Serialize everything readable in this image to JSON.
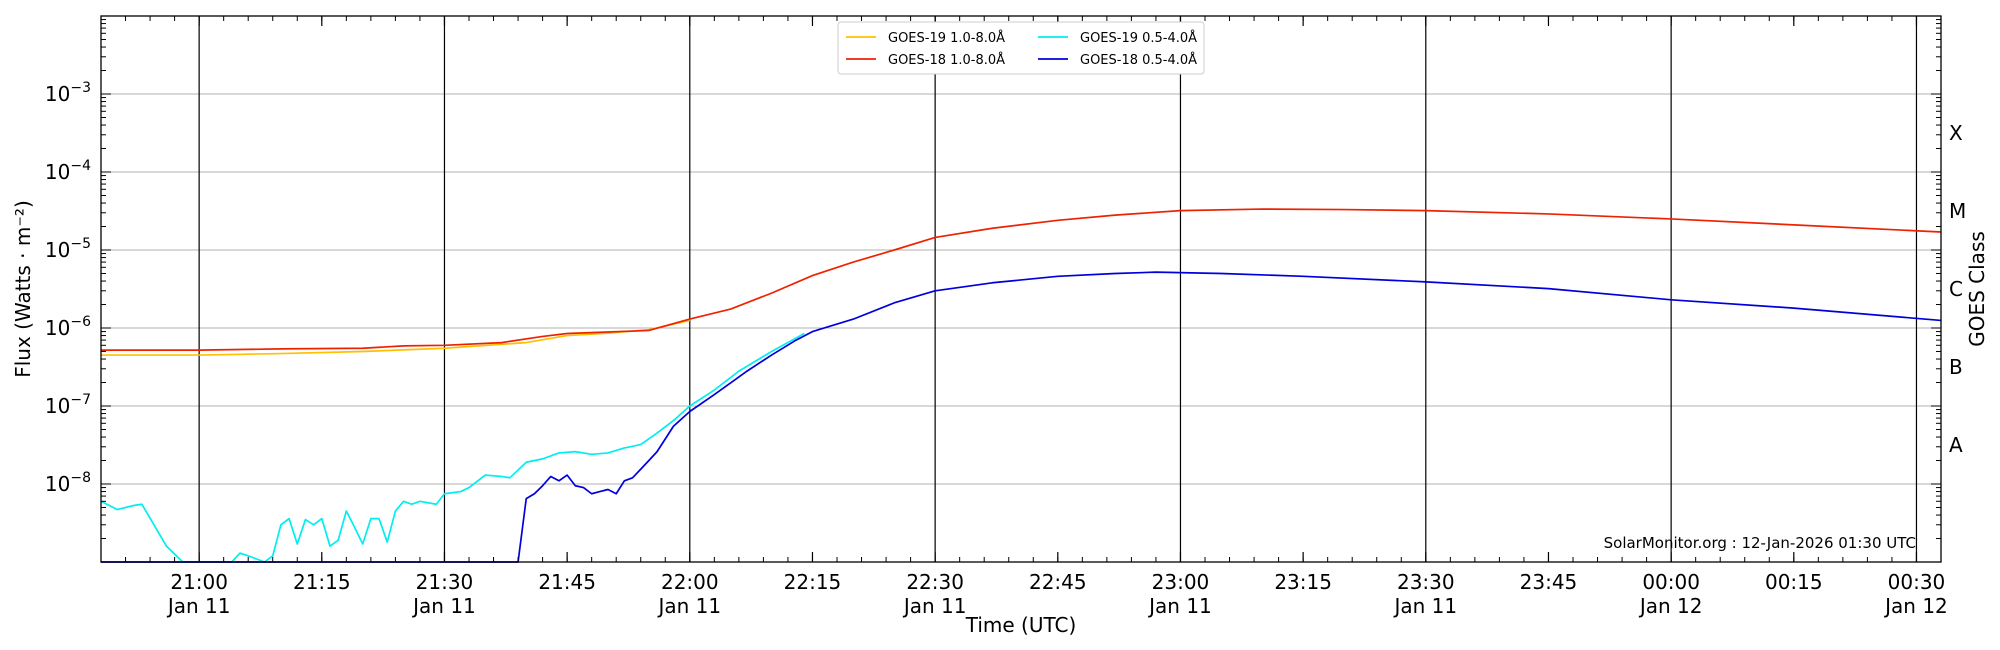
{
  "chart_data": {
    "type": "line",
    "xlabel": "Time (UTC)",
    "ylabel": "Flux (Watts · m⁻²)",
    "ylabel_right": "GOES Class",
    "yscale": "log",
    "xlim": [
      "2026-01-11 20:48",
      "2026-01-12 00:33"
    ],
    "ylim": [
      1e-09,
      0.01
    ],
    "grid": "horizontal at decades, vertical at 30-minute marks",
    "legend_position": "top-center",
    "watermark": "SolarMonitor.org : 12-Jan-2026 01:30 UTC",
    "x_ticks": [
      {
        "time": "2026-01-11 21:00",
        "label": "21:00",
        "sub": "Jan 11"
      },
      {
        "time": "2026-01-11 21:15",
        "label": "21:15",
        "sub": ""
      },
      {
        "time": "2026-01-11 21:30",
        "label": "21:30",
        "sub": "Jan 11"
      },
      {
        "time": "2026-01-11 21:45",
        "label": "21:45",
        "sub": ""
      },
      {
        "time": "2026-01-11 22:00",
        "label": "22:00",
        "sub": "Jan 11"
      },
      {
        "time": "2026-01-11 22:15",
        "label": "22:15",
        "sub": ""
      },
      {
        "time": "2026-01-11 22:30",
        "label": "22:30",
        "sub": "Jan 11"
      },
      {
        "time": "2026-01-11 22:45",
        "label": "22:45",
        "sub": ""
      },
      {
        "time": "2026-01-11 23:00",
        "label": "23:00",
        "sub": "Jan 11"
      },
      {
        "time": "2026-01-11 23:15",
        "label": "23:15",
        "sub": ""
      },
      {
        "time": "2026-01-11 23:30",
        "label": "23:30",
        "sub": "Jan 11"
      },
      {
        "time": "2026-01-11 23:45",
        "label": "23:45",
        "sub": ""
      },
      {
        "time": "2026-01-12 00:00",
        "label": "00:00",
        "sub": "Jan 12"
      },
      {
        "time": "2026-01-12 00:15",
        "label": "00:15",
        "sub": ""
      },
      {
        "time": "2026-01-12 00:30",
        "label": "00:30",
        "sub": "Jan 12"
      }
    ],
    "y_ticks": [
      {
        "value": 1e-08,
        "mant": "10",
        "exp": "−8"
      },
      {
        "value": 1e-07,
        "mant": "10",
        "exp": "−7"
      },
      {
        "value": 1e-06,
        "mant": "10",
        "exp": "−6"
      },
      {
        "value": 1e-05,
        "mant": "10",
        "exp": "−5"
      },
      {
        "value": 0.0001,
        "mant": "10",
        "exp": "−4"
      },
      {
        "value": 0.001,
        "mant": "10",
        "exp": "−3"
      }
    ],
    "class_labels": [
      {
        "label": "A",
        "value": 1e-08
      },
      {
        "label": "B",
        "value": 1e-07
      },
      {
        "label": "C",
        "value": 1e-06
      },
      {
        "label": "M",
        "value": 1e-05
      },
      {
        "label": "X",
        "value": 0.0001
      }
    ],
    "series": [
      {
        "name": "GOES-19 1.0-8.0Å",
        "color": "#ffc000",
        "points": [
          [
            "2026-01-11 20:48",
            4.5e-07
          ],
          [
            "2026-01-11 21:00",
            4.5e-07
          ],
          [
            "2026-01-11 21:10",
            4.7e-07
          ],
          [
            "2026-01-11 21:20",
            5e-07
          ],
          [
            "2026-01-11 21:30",
            5.5e-07
          ],
          [
            "2026-01-11 21:40",
            6.5e-07
          ],
          [
            "2026-01-11 21:45",
            8e-07
          ],
          [
            "2026-01-11 21:50",
            8.6e-07
          ],
          [
            "2026-01-11 21:55",
            9.5e-07
          ],
          [
            "2026-01-11 22:00",
            1.25e-06
          ]
        ]
      },
      {
        "name": "GOES-18 1.0-8.0Å",
        "color": "#ee2200",
        "points": [
          [
            "2026-01-11 20:48",
            5.2e-07
          ],
          [
            "2026-01-11 21:00",
            5.2e-07
          ],
          [
            "2026-01-11 21:10",
            5.4e-07
          ],
          [
            "2026-01-11 21:20",
            5.5e-07
          ],
          [
            "2026-01-11 21:25",
            5.9e-07
          ],
          [
            "2026-01-11 21:30",
            6e-07
          ],
          [
            "2026-01-11 21:37",
            6.5e-07
          ],
          [
            "2026-01-11 21:42",
            7.8e-07
          ],
          [
            "2026-01-11 21:45",
            8.5e-07
          ],
          [
            "2026-01-11 21:55",
            9.3e-07
          ],
          [
            "2026-01-11 22:00",
            1.3e-06
          ],
          [
            "2026-01-11 22:05",
            1.75e-06
          ],
          [
            "2026-01-11 22:10",
            2.8e-06
          ],
          [
            "2026-01-11 22:15",
            4.7e-06
          ],
          [
            "2026-01-11 22:20",
            7e-06
          ],
          [
            "2026-01-11 22:25",
            1e-05
          ],
          [
            "2026-01-11 22:30",
            1.45e-05
          ],
          [
            "2026-01-11 22:37",
            1.9e-05
          ],
          [
            "2026-01-11 22:45",
            2.4e-05
          ],
          [
            "2026-01-11 22:52",
            2.8e-05
          ],
          [
            "2026-01-11 23:00",
            3.2e-05
          ],
          [
            "2026-01-11 23:10",
            3.35e-05
          ],
          [
            "2026-01-11 23:20",
            3.3e-05
          ],
          [
            "2026-01-11 23:30",
            3.2e-05
          ],
          [
            "2026-01-11 23:45",
            2.9e-05
          ],
          [
            "2026-01-12 00:00",
            2.5e-05
          ],
          [
            "2026-01-12 00:15",
            2.1e-05
          ],
          [
            "2026-01-12 00:33",
            1.7e-05
          ]
        ]
      },
      {
        "name": "GOES-19 0.5-4.0Å",
        "color": "#00eeee",
        "points": [
          [
            "2026-01-11 20:48",
            6e-09
          ],
          [
            "2026-01-11 20:50",
            4.7e-09
          ],
          [
            "2026-01-11 20:52",
            5.3e-09
          ],
          [
            "2026-01-11 20:53",
            5.5e-09
          ],
          [
            "2026-01-11 20:56",
            1.6e-09
          ],
          [
            "2026-01-11 20:58",
            9e-10
          ],
          [
            "2026-01-11 21:04",
            9e-10
          ],
          [
            "2026-01-11 21:05",
            1.3e-09
          ],
          [
            "2026-01-11 21:06",
            1.2e-09
          ],
          [
            "2026-01-11 21:08",
            9e-10
          ],
          [
            "2026-01-11 21:09",
            1.2e-09
          ],
          [
            "2026-01-11 21:10",
            3e-09
          ],
          [
            "2026-01-11 21:11",
            3.6e-09
          ],
          [
            "2026-01-11 21:12",
            1.7e-09
          ],
          [
            "2026-01-11 21:13",
            3.5e-09
          ],
          [
            "2026-01-11 21:14",
            3e-09
          ],
          [
            "2026-01-11 21:15",
            3.6e-09
          ],
          [
            "2026-01-11 21:16",
            1.6e-09
          ],
          [
            "2026-01-11 21:17",
            1.9e-09
          ],
          [
            "2026-01-11 21:18",
            4.5e-09
          ],
          [
            "2026-01-11 21:19",
            2.8e-09
          ],
          [
            "2026-01-11 21:20",
            1.7e-09
          ],
          [
            "2026-01-11 21:21",
            3.6e-09
          ],
          [
            "2026-01-11 21:22",
            3.6e-09
          ],
          [
            "2026-01-11 21:23",
            1.8e-09
          ],
          [
            "2026-01-11 21:24",
            4.5e-09
          ],
          [
            "2026-01-11 21:25",
            6e-09
          ],
          [
            "2026-01-11 21:26",
            5.5e-09
          ],
          [
            "2026-01-11 21:27",
            6e-09
          ],
          [
            "2026-01-11 21:29",
            5.5e-09
          ],
          [
            "2026-01-11 21:30",
            7.5e-09
          ],
          [
            "2026-01-11 21:32",
            8e-09
          ],
          [
            "2026-01-11 21:33",
            9e-09
          ],
          [
            "2026-01-11 21:35",
            1.3e-08
          ],
          [
            "2026-01-11 21:37",
            1.25e-08
          ],
          [
            "2026-01-11 21:38",
            1.2e-08
          ],
          [
            "2026-01-11 21:40",
            1.9e-08
          ],
          [
            "2026-01-11 21:42",
            2.1e-08
          ],
          [
            "2026-01-11 21:44",
            2.5e-08
          ],
          [
            "2026-01-11 21:46",
            2.6e-08
          ],
          [
            "2026-01-11 21:48",
            2.4e-08
          ],
          [
            "2026-01-11 21:50",
            2.5e-08
          ],
          [
            "2026-01-11 21:52",
            2.9e-08
          ],
          [
            "2026-01-11 21:54",
            3.2e-08
          ],
          [
            "2026-01-11 21:56",
            4.5e-08
          ],
          [
            "2026-01-11 21:58",
            6.5e-08
          ],
          [
            "2026-01-11 22:00",
            1e-07
          ],
          [
            "2026-01-11 22:03",
            1.6e-07
          ],
          [
            "2026-01-11 22:06",
            2.8e-07
          ],
          [
            "2026-01-11 22:10",
            5e-07
          ],
          [
            "2026-01-11 22:14",
            8.5e-07
          ]
        ]
      },
      {
        "name": "GOES-18 0.5-4.0Å",
        "color": "#0000dd",
        "points": [
          [
            "2026-01-11 20:48",
            1e-09
          ],
          [
            "2026-01-11 21:39",
            1e-09
          ],
          [
            "2026-01-11 21:40",
            6.5e-09
          ],
          [
            "2026-01-11 21:41",
            7.5e-09
          ],
          [
            "2026-01-11 21:42",
            9.5e-09
          ],
          [
            "2026-01-11 21:43",
            1.25e-08
          ],
          [
            "2026-01-11 21:44",
            1.1e-08
          ],
          [
            "2026-01-11 21:45",
            1.3e-08
          ],
          [
            "2026-01-11 21:46",
            9.5e-09
          ],
          [
            "2026-01-11 21:47",
            9e-09
          ],
          [
            "2026-01-11 21:48",
            7.5e-09
          ],
          [
            "2026-01-11 21:49",
            8e-09
          ],
          [
            "2026-01-11 21:50",
            8.5e-09
          ],
          [
            "2026-01-11 21:51",
            7.5e-09
          ],
          [
            "2026-01-11 21:52",
            1.1e-08
          ],
          [
            "2026-01-11 21:53",
            1.2e-08
          ],
          [
            "2026-01-11 21:55",
            2e-08
          ],
          [
            "2026-01-11 21:56",
            2.6e-08
          ],
          [
            "2026-01-11 21:58",
            5.5e-08
          ],
          [
            "2026-01-11 22:00",
            8.5e-08
          ],
          [
            "2026-01-11 22:03",
            1.4e-07
          ],
          [
            "2026-01-11 22:07",
            2.8e-07
          ],
          [
            "2026-01-11 22:10",
            4.5e-07
          ],
          [
            "2026-01-11 22:13",
            7e-07
          ],
          [
            "2026-01-11 22:15",
            9e-07
          ],
          [
            "2026-01-11 22:20",
            1.3e-06
          ],
          [
            "2026-01-11 22:25",
            2.1e-06
          ],
          [
            "2026-01-11 22:30",
            3e-06
          ],
          [
            "2026-01-11 22:37",
            3.8e-06
          ],
          [
            "2026-01-11 22:45",
            4.6e-06
          ],
          [
            "2026-01-11 22:52",
            5e-06
          ],
          [
            "2026-01-11 22:57",
            5.2e-06
          ],
          [
            "2026-01-11 23:05",
            5e-06
          ],
          [
            "2026-01-11 23:15",
            4.6e-06
          ],
          [
            "2026-01-11 23:30",
            3.9e-06
          ],
          [
            "2026-01-11 23:45",
            3.2e-06
          ],
          [
            "2026-01-12 00:00",
            2.3e-06
          ],
          [
            "2026-01-12 00:15",
            1.8e-06
          ],
          [
            "2026-01-12 00:33",
            1.25e-06
          ]
        ]
      }
    ]
  }
}
